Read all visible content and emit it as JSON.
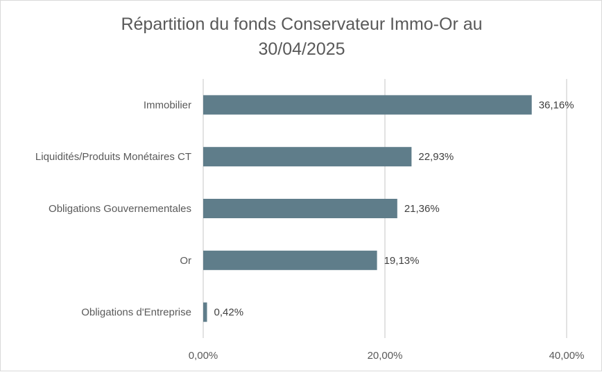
{
  "chart_data": {
    "type": "bar",
    "orientation": "horizontal",
    "title": "Répartition du fonds Conservateur Immo-Or au 30/04/2025",
    "categories": [
      "Immobilier",
      "Liquidités/Produits Monétaires CT",
      "Obligations Gouvernementales",
      "Or",
      "Obligations d'Entreprise"
    ],
    "values": [
      36.16,
      22.93,
      21.36,
      19.13,
      0.42
    ],
    "value_labels": [
      "36,16%",
      "22,93%",
      "21,36%",
      "19,13%",
      "0,42%"
    ],
    "xlim": [
      0,
      40
    ],
    "x_ticks": [
      0,
      20,
      40
    ],
    "x_tick_labels": [
      "0,00%",
      "20,00%",
      "40,00%"
    ],
    "grid": "vertical",
    "legend": "none",
    "colors": {
      "bar": "#5f7d8a",
      "grid": "#d9d9d9",
      "text": "#595959"
    }
  }
}
